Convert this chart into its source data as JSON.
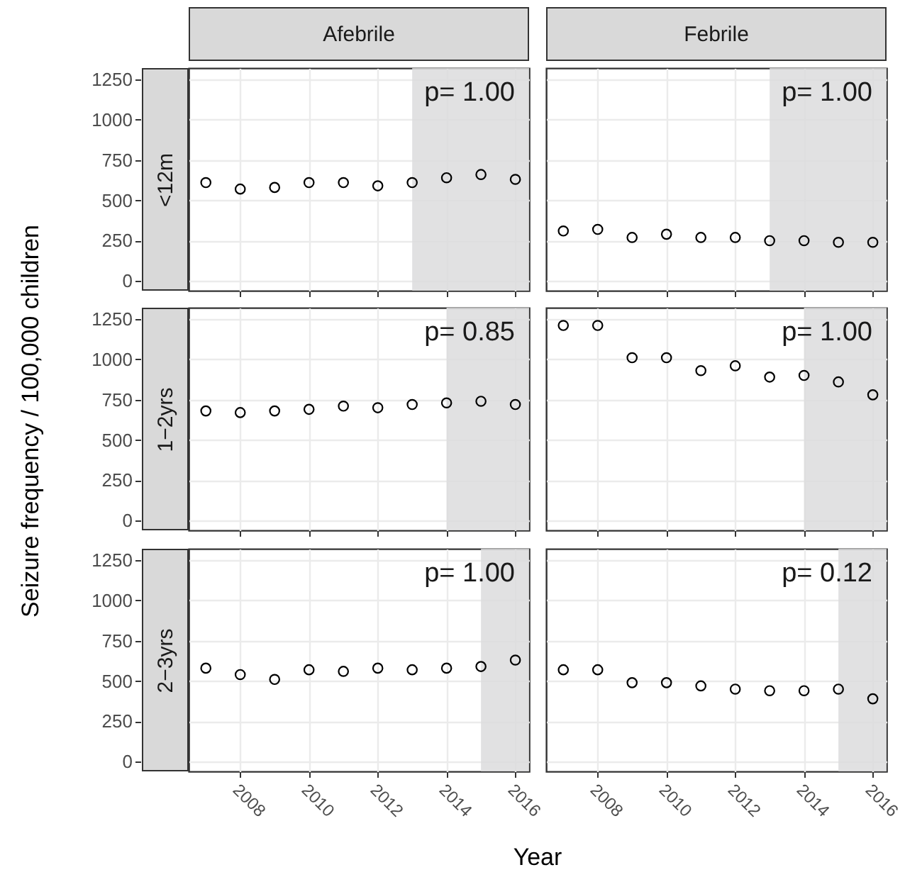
{
  "chart_data": [
    {
      "type": "scatter",
      "title": "Afebrile",
      "subtitle": "<12m",
      "x": [
        2007,
        2008,
        2009,
        2010,
        2011,
        2012,
        2013,
        2014,
        2015,
        2016
      ],
      "series": [
        {
          "color": "#000000",
          "values": [
            610,
            570,
            580,
            610,
            610,
            590,
            610,
            640,
            660,
            630
          ]
        }
      ],
      "xlim": [
        2006.5,
        2016.4
      ],
      "ylim": [
        -60,
        1320
      ],
      "xticks": [
        2008,
        2010,
        2012,
        2014,
        2016
      ],
      "yticks": [
        0,
        250,
        500,
        750,
        1000,
        1250
      ],
      "grid": true,
      "marker": "circle",
      "tick_labels": "y",
      "bands": [
        {
          "axis": "x",
          "from": 2013,
          "to": 2016.4,
          "color": "#dcdcdd"
        }
      ],
      "annotations": [
        "p= 1.00"
      ]
    },
    {
      "type": "scatter",
      "title": "Febrile",
      "x": [
        2007,
        2008,
        2009,
        2010,
        2011,
        2012,
        2013,
        2014,
        2015,
        2016
      ],
      "series": [
        {
          "color": "#000000",
          "values": [
            310,
            320,
            270,
            290,
            270,
            270,
            250,
            250,
            240,
            240
          ]
        }
      ],
      "xlim": [
        2006.5,
        2016.4
      ],
      "ylim": [
        -60,
        1320
      ],
      "xticks": [
        2008,
        2010,
        2012,
        2014,
        2016
      ],
      "yticks": [
        0,
        250,
        500,
        750,
        1000,
        1250
      ],
      "grid": true,
      "marker": "circle",
      "tick_labels": false,
      "bands": [
        {
          "axis": "x",
          "from": 2013,
          "to": 2016.4,
          "color": "#dcdcdd"
        }
      ],
      "annotations": [
        "p= 1.00"
      ]
    },
    {
      "type": "scatter",
      "subtitle": "1−2yrs",
      "ylabel": "Seizure frequency / 100,000 children",
      "x": [
        2007,
        2008,
        2009,
        2010,
        2011,
        2012,
        2013,
        2014,
        2015,
        2016
      ],
      "series": [
        {
          "color": "#000000",
          "values": [
            680,
            670,
            680,
            690,
            710,
            700,
            720,
            730,
            740,
            720
          ]
        }
      ],
      "xlim": [
        2006.5,
        2016.4
      ],
      "ylim": [
        -60,
        1320
      ],
      "xticks": [
        2008,
        2010,
        2012,
        2014,
        2016
      ],
      "yticks": [
        0,
        250,
        500,
        750,
        1000,
        1250
      ],
      "grid": true,
      "marker": "circle",
      "tick_labels": "y",
      "bands": [
        {
          "axis": "x",
          "from": 2014,
          "to": 2016.4,
          "color": "#dcdcdd"
        }
      ],
      "annotations": [
        "p= 0.85"
      ]
    },
    {
      "type": "scatter",
      "x": [
        2007,
        2008,
        2009,
        2010,
        2011,
        2012,
        2013,
        2014,
        2015,
        2016
      ],
      "series": [
        {
          "color": "#000000",
          "values": [
            1210,
            1210,
            1010,
            1010,
            930,
            960,
            890,
            900,
            860,
            780
          ]
        }
      ],
      "xlim": [
        2006.5,
        2016.4
      ],
      "ylim": [
        -60,
        1320
      ],
      "xticks": [
        2008,
        2010,
        2012,
        2014,
        2016
      ],
      "yticks": [
        0,
        250,
        500,
        750,
        1000,
        1250
      ],
      "grid": true,
      "marker": "circle",
      "tick_labels": false,
      "bands": [
        {
          "axis": "x",
          "from": 2014,
          "to": 2016.4,
          "color": "#dcdcdd"
        }
      ],
      "annotations": [
        "p= 1.00"
      ]
    },
    {
      "type": "scatter",
      "subtitle": "2−3yrs",
      "xlabel": "Year",
      "x": [
        2007,
        2008,
        2009,
        2010,
        2011,
        2012,
        2013,
        2014,
        2015,
        2016
      ],
      "series": [
        {
          "color": "#000000",
          "values": [
            580,
            540,
            510,
            570,
            560,
            580,
            570,
            580,
            590,
            630
          ]
        }
      ],
      "xlim": [
        2006.5,
        2016.4
      ],
      "ylim": [
        -60,
        1320
      ],
      "xticks": [
        2008,
        2010,
        2012,
        2014,
        2016
      ],
      "yticks": [
        0,
        250,
        500,
        750,
        1000,
        1250
      ],
      "grid": true,
      "marker": "circle",
      "bands": [
        {
          "axis": "x",
          "from": 2015,
          "to": 2016.4,
          "color": "#dcdcdd"
        }
      ],
      "annotations": [
        "p= 1.00"
      ]
    },
    {
      "type": "scatter",
      "x": [
        2007,
        2008,
        2009,
        2010,
        2011,
        2012,
        2013,
        2014,
        2015,
        2016
      ],
      "series": [
        {
          "color": "#000000",
          "values": [
            570,
            570,
            490,
            490,
            470,
            450,
            440,
            440,
            450,
            390
          ]
        }
      ],
      "xlim": [
        2006.5,
        2016.4
      ],
      "ylim": [
        -60,
        1320
      ],
      "xticks": [
        2008,
        2010,
        2012,
        2014,
        2016
      ],
      "yticks": [
        0,
        250,
        500,
        750,
        1000,
        1250
      ],
      "grid": true,
      "marker": "circle",
      "tick_labels": "x",
      "bands": [
        {
          "axis": "x",
          "from": 2015,
          "to": 2016.4,
          "color": "#dcdcdd"
        }
      ],
      "annotations": [
        "p= 0.12"
      ]
    }
  ]
}
